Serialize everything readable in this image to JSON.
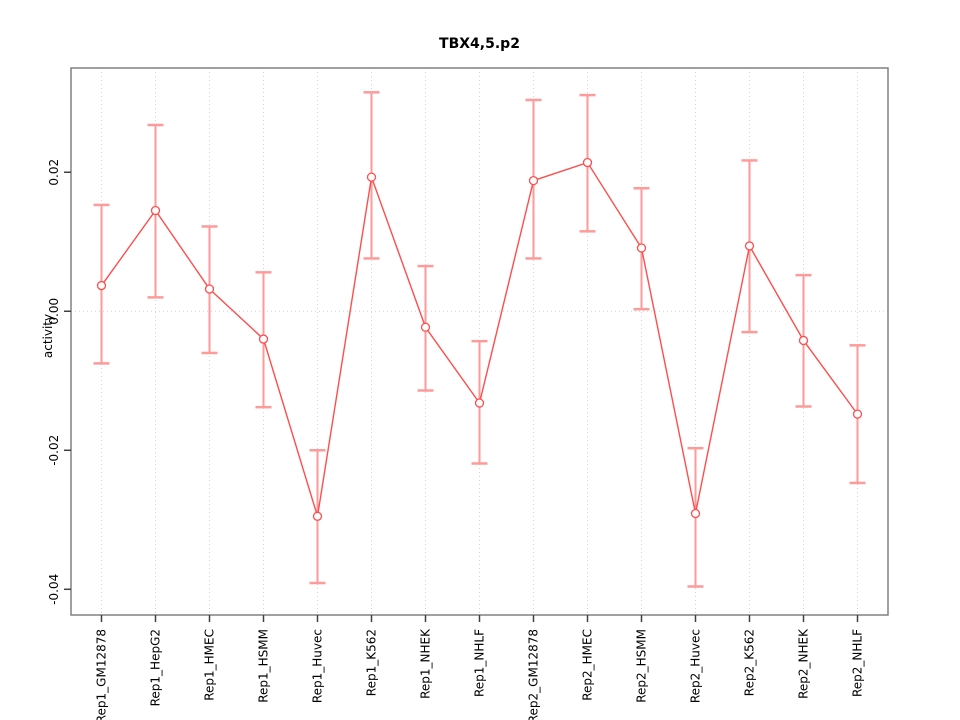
{
  "chart_data": {
    "type": "line",
    "title": "TBX4,5.p2",
    "xlabel": "",
    "ylabel": "activity",
    "legend": null,
    "grid": {
      "horizontal_zero_line": true,
      "vertical_category_lines": true,
      "style": "dotted"
    },
    "ylim": [
      -0.0437,
      0.035
    ],
    "yticks": {
      "values": [
        0.02,
        0.0,
        -0.02,
        -0.04
      ],
      "labels": [
        "0.02",
        "0.00",
        "-0.02",
        "-0.04"
      ]
    },
    "categories": [
      "Rep1_GM12878",
      "Rep1_HepG2",
      "Rep1_HMEC",
      "Rep1_HSMM",
      "Rep1_Huvec",
      "Rep1_K562",
      "Rep1_NHEK",
      "Rep1_NHLF",
      "Rep2_GM12878",
      "Rep2_HMEC",
      "Rep2_HSMM",
      "Rep2_Huvec",
      "Rep2_K562",
      "Rep2_NHEK",
      "Rep2_NHLF"
    ],
    "series": [
      {
        "name": "activity",
        "marker": "open-circle",
        "values": [
          0.0037,
          0.0145,
          0.0032,
          -0.004,
          -0.0295,
          0.0193,
          -0.0023,
          -0.0132,
          0.0188,
          0.0214,
          0.0091,
          -0.0291,
          0.0094,
          -0.0042,
          -0.0148
        ],
        "ci_lower": [
          -0.0075,
          0.002,
          -0.006,
          -0.0138,
          -0.0391,
          0.0076,
          -0.0114,
          -0.0219,
          0.0076,
          0.0115,
          0.0003,
          -0.0396,
          -0.003,
          -0.0137,
          -0.0247
        ],
        "ci_upper": [
          0.0153,
          0.0268,
          0.0122,
          0.0056,
          -0.02,
          0.0315,
          0.0065,
          -0.0043,
          0.0304,
          0.0311,
          0.0177,
          -0.0197,
          0.0217,
          0.0052,
          -0.0049
        ]
      }
    ],
    "colors": {
      "line": "#ff4d4d",
      "marker_stroke": "#ff4d4d",
      "marker_fill": "#ffffff",
      "error_bar": "#ff9a9a",
      "grid": "#d2d2d2",
      "frame": "#808080",
      "tick": "#404040",
      "text": "#000000"
    }
  }
}
